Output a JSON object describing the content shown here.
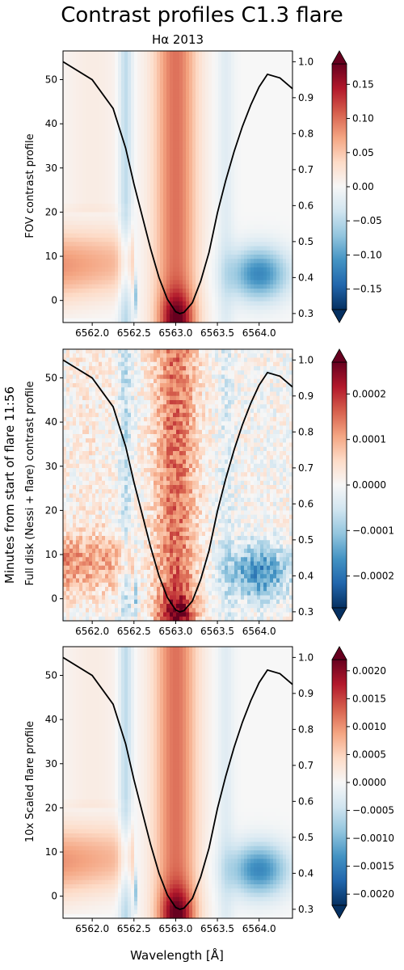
{
  "figure": {
    "title": "Contrast profiles C1.3 flare",
    "subtitle": "Hα 2013",
    "xlabel": "Wavelength [Å]",
    "ylabel": "Minutes from start of flare 11:56"
  },
  "chart_data": [
    {
      "type": "heatmap",
      "panel_label": "FOV contrast profile",
      "xlim": [
        6561.65,
        6564.4
      ],
      "ylim": [
        -5,
        56.5
      ],
      "x_ticks": [
        6562.0,
        6562.5,
        6563.0,
        6563.5,
        6564.0
      ],
      "x_tick_labels": [
        "6562.0",
        "6562.5",
        "6563.0",
        "6563.5",
        "6564.0"
      ],
      "y_ticks": [
        0,
        10,
        20,
        30,
        40,
        50
      ],
      "y_tick_labels": [
        "0",
        "10",
        "20",
        "30",
        "40",
        "50"
      ],
      "right_ylim": [
        0.275,
        1.03
      ],
      "right_y_ticks": [
        0.3,
        0.4,
        0.5,
        0.6,
        0.7,
        0.8,
        0.9,
        1.0
      ],
      "right_y_tick_labels": [
        "0.3",
        "0.4",
        "0.5",
        "0.6",
        "0.7",
        "0.8",
        "0.9",
        "1.0"
      ],
      "colorbar_lim": [
        -0.18,
        0.18
      ],
      "colorbar_ticks": [
        -0.15,
        -0.1,
        -0.05,
        0.0,
        0.05,
        0.1,
        0.15
      ],
      "colorbar_tick_labels": [
        "−0.15",
        "−0.10",
        "−0.05",
        "0.00",
        "0.05",
        "0.10",
        "0.15"
      ],
      "colormap": "RdBu_r",
      "noisy": false
    },
    {
      "type": "heatmap",
      "panel_label": "Full disk (Nessi + flare) contrast profile",
      "xlim": [
        6561.65,
        6564.4
      ],
      "ylim": [
        -5,
        56.5
      ],
      "x_ticks": [
        6562.0,
        6562.5,
        6563.0,
        6563.5,
        6564.0
      ],
      "x_tick_labels": [
        "6562.0",
        "6562.5",
        "6563.0",
        "6563.5",
        "6564.0"
      ],
      "y_ticks": [
        0,
        10,
        20,
        30,
        40,
        50
      ],
      "y_tick_labels": [
        "0",
        "10",
        "20",
        "30",
        "40",
        "50"
      ],
      "right_ylim": [
        0.275,
        1.03
      ],
      "right_y_ticks": [
        0.3,
        0.4,
        0.5,
        0.6,
        0.7,
        0.8,
        0.9,
        1.0
      ],
      "right_y_tick_labels": [
        "0.3",
        "0.4",
        "0.5",
        "0.6",
        "0.7",
        "0.8",
        "0.9",
        "1.0"
      ],
      "colorbar_lim": [
        -0.00027,
        0.00027
      ],
      "colorbar_ticks": [
        -0.0002,
        -0.0001,
        0.0,
        0.0001,
        0.0002
      ],
      "colorbar_tick_labels": [
        "−0.0002",
        "−0.0001",
        "0.0000",
        "0.0001",
        "0.0002"
      ],
      "colormap": "RdBu_r",
      "noisy": true
    },
    {
      "type": "heatmap",
      "panel_label": "10x Scaled flare profile",
      "xlim": [
        6561.65,
        6564.4
      ],
      "ylim": [
        -5,
        56.5
      ],
      "x_ticks": [
        6562.0,
        6562.5,
        6563.0,
        6563.5,
        6564.0
      ],
      "x_tick_labels": [
        "6562.0",
        "6562.5",
        "6563.0",
        "6563.5",
        "6564.0"
      ],
      "y_ticks": [
        0,
        10,
        20,
        30,
        40,
        50
      ],
      "y_tick_labels": [
        "0",
        "10",
        "20",
        "30",
        "40",
        "50"
      ],
      "right_ylim": [
        0.275,
        1.03
      ],
      "right_y_ticks": [
        0.3,
        0.4,
        0.5,
        0.6,
        0.7,
        0.8,
        0.9,
        1.0
      ],
      "right_y_tick_labels": [
        "0.3",
        "0.4",
        "0.5",
        "0.6",
        "0.7",
        "0.8",
        "0.9",
        "1.0"
      ],
      "colorbar_lim": [
        -0.0022,
        0.0022
      ],
      "colorbar_ticks": [
        -0.002,
        -0.0015,
        -0.001,
        -0.0005,
        0.0,
        0.0005,
        0.001,
        0.0015,
        0.002
      ],
      "colorbar_tick_labels": [
        "−0.0020",
        "−0.0015",
        "−0.0010",
        "−0.0005",
        "0.0000",
        "0.0005",
        "0.0010",
        "0.0015",
        "0.0020"
      ],
      "colormap": "RdBu_r",
      "noisy": false
    }
  ],
  "line_profile": {
    "type": "line",
    "color": "#000000",
    "x": [
      6561.65,
      6562.0,
      6562.25,
      6562.4,
      6562.5,
      6562.6,
      6562.7,
      6562.8,
      6562.9,
      6563.0,
      6563.05,
      6563.1,
      6563.2,
      6563.3,
      6563.4,
      6563.5,
      6563.6,
      6563.7,
      6563.8,
      6563.9,
      6564.0,
      6564.1,
      6564.25,
      6564.4
    ],
    "y": [
      1.0,
      0.95,
      0.87,
      0.76,
      0.66,
      0.57,
      0.48,
      0.4,
      0.34,
      0.305,
      0.3,
      0.303,
      0.33,
      0.39,
      0.47,
      0.58,
      0.67,
      0.75,
      0.82,
      0.88,
      0.93,
      0.965,
      0.955,
      0.925
    ]
  }
}
